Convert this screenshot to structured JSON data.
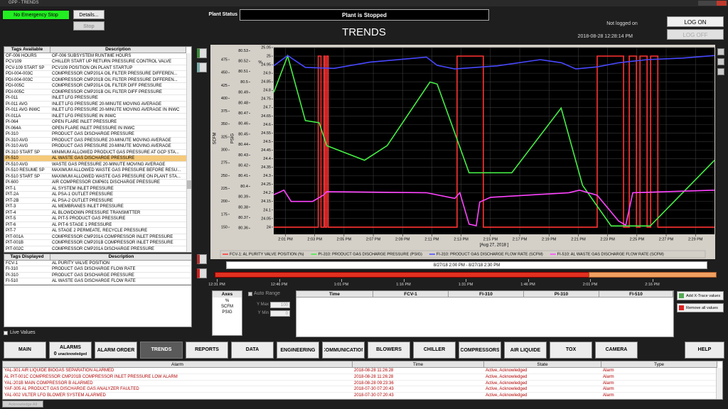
{
  "window_title": "GPP - TRENDS",
  "header": {
    "emergency": "No Emergency Stop",
    "details_button": "Details...",
    "stop_button": "Stop",
    "plant_status_label": "Plant Status",
    "plant_status": "Plant is Stopped",
    "title": "TRENDS",
    "login_status": "Not logged on",
    "log_on": "LOG ON",
    "log_off": "LOG OFF",
    "datetime": "2018-08-28 12:28:14 PM"
  },
  "tags_available": {
    "columns": [
      "Tags Available",
      "Description"
    ],
    "selected": 17,
    "rows": [
      [
        "OF-006 HOURS",
        "OF-006 SUBSYSTEM RUNTIME HOURS"
      ],
      [
        "PCV109",
        "CHILLER START UP RETURN PRESSURE CONTROL VALVE"
      ],
      [
        "PCV-109 START SP",
        "PCV109 POSITION ON PLANT STARTUP"
      ],
      [
        "PDI-004-003C",
        "COMPRESSOR CMP201A OIL FILTER PRESSURE DIFFEREN..."
      ],
      [
        "PDI-004-003C",
        "COMPRESSOR CMP201B OIL FILTER PRESSURE DIFFEREN..."
      ],
      [
        "PDI-005C",
        "COMPRESSOR CMP201A OIL FILTER DIFF PRESSURE"
      ],
      [
        "PDI-005C",
        "COMPRESSOR CMP201B OIL FILTER DIFF PRESSURE"
      ],
      [
        "PI-011",
        "INLET LFG PRESSURE"
      ],
      [
        "PI-011 AVG",
        "INLET LFG PRESSURE 20-MINUTE MOVING AVERAGE"
      ],
      [
        "PI-011 AVG INWC",
        "INLET LFG PRESSURE 20-MINUTE MOVING AVERAGE IN INWC"
      ],
      [
        "PI-011A",
        "INLET LFG PRESSURE IN INWC"
      ],
      [
        "PI-064",
        "OPEN FLARE INLET PRESSURE"
      ],
      [
        "PI-064A",
        "OPEN FLARE INLET PRESSURE IN INWC"
      ],
      [
        "PI-310",
        "PRODUCT GAS DISCHARGE PRESSURE"
      ],
      [
        "PI-310 AVG",
        "PRODUCT GAS PRESSURE 20-MINUTE MOVING AVERAGE"
      ],
      [
        "PI-310 AVG",
        "PRODUCT GAS PRESSURE 20-MINUTE MOVING AVERAGE"
      ],
      [
        "PI-310 START SP",
        "MINIMUM ALLOWED PRODUCT GAS PRESSURE AT GCP STA..."
      ],
      [
        "PI-510",
        "AL WASTE GAS DISCHARGE PRESSURE"
      ],
      [
        "PI-510 AVG",
        "WASTE GAS PRESSURE 20-MINUTE MOVING AVERAGE"
      ],
      [
        "PI-510 RESUME SP",
        "MAXIMUM ALLOWED WASTE GAS PRESSURE BEFORE RESU..."
      ],
      [
        "PI-510 START SP",
        "MAXIMUM ALLOWED WASTE GAS PRESSURE ON PLANT STA..."
      ],
      [
        "PI-600",
        "AIR COMPRESSOR CMP601 DISCHARGE PRESSURE"
      ],
      [
        "PIT-1",
        "AL SYSTEM INLET PRESSURE"
      ],
      [
        "PIT-2A",
        "AL PSA-1 OUTLET PRESSURE"
      ],
      [
        "PIT-2B",
        "AL PSA-2 OUTLET PRESSURE"
      ],
      [
        "PIT-3",
        "AL MEMBRANES INLET PRESSURE"
      ],
      [
        "PIT-4",
        "AL BLOWDOWN PRESSURE TRANSMITTER"
      ],
      [
        "PIT-5",
        "AL PIT-5 PRODUCT GAS PRESSURE"
      ],
      [
        "PIT-6",
        "AL PIT-6 STAGE 1 PRESSURE"
      ],
      [
        "PIT-7",
        "AL  STAGE 2 PERMEATE, RECYCLE PRESSURE"
      ],
      [
        "PIT-001A",
        "COMPRESSOR CMP201A COMPRESSOR INLET PRESSURE"
      ],
      [
        "PIT-001B",
        "COMPRESSOR CMP201B COMPRESSOR INLET PRESSURE"
      ],
      [
        "PIT-002C",
        "COMPRESSOR CMP201A DISCHARGE PRESSURE"
      ]
    ]
  },
  "tags_displayed": {
    "columns": [
      "Tags Displayed",
      "Description"
    ],
    "rows": [
      [
        "FCV-1",
        "AL PURITY VALVE POSITION"
      ],
      [
        "FI-310",
        "PRODUCT GAS DISCHARGE FLOW RATE"
      ],
      [
        "PI-310",
        "PRODUCT GAS DISCHARGE PRESSURE"
      ],
      [
        "FI-510",
        "AL WASTE GAS DISCHARGE FLOW RATE"
      ]
    ]
  },
  "live_values": "Live Values",
  "chart_data": {
    "type": "line",
    "xlabel": "[Aug 27, 2018 ]",
    "xlim": [
      0.2,
      30.3
    ],
    "xticks": [
      {
        "value": 1,
        "label": "2:01 PM"
      },
      {
        "value": 3,
        "label": "2:03 PM"
      },
      {
        "value": 5,
        "label": "2:05 PM"
      },
      {
        "value": 7,
        "label": "2:07 PM"
      },
      {
        "value": 9,
        "label": "2:09 PM"
      },
      {
        "value": 11,
        "label": "2:11 PM"
      },
      {
        "value": 13,
        "label": "2:13 PM"
      },
      {
        "value": 15,
        "label": "2:15 PM"
      },
      {
        "value": 17,
        "label": "2:17 PM"
      },
      {
        "value": 19,
        "label": "2:19 PM"
      },
      {
        "value": 21,
        "label": "2:21 PM"
      },
      {
        "value": 23,
        "label": "2:23 PM"
      },
      {
        "value": 25,
        "label": "2:25 PM"
      },
      {
        "value": 27,
        "label": "2:27 PM"
      },
      {
        "value": 29,
        "label": "2:29 PM"
      }
    ],
    "ylabel": "%",
    "ylim": [
      23.958,
      25.05
    ],
    "yticks": [
      24,
      24.05,
      24.1,
      24.15,
      24.2,
      24.25,
      24.3,
      24.35,
      24.4,
      24.45,
      24.5,
      24.55,
      24.6,
      24.65,
      24.7,
      24.75,
      24.8,
      24.85,
      24.9,
      24.95,
      25,
      25.05
    ],
    "y2label": "PSIG",
    "y2lim": [
      80.354,
      80.533
    ],
    "y2ticks": [
      80.36,
      80.37,
      80.38,
      80.39,
      80.4,
      80.41,
      80.42,
      80.43,
      80.44,
      80.45,
      80.46,
      80.47,
      80.48,
      80.49,
      80.5,
      80.51,
      80.52,
      80.53
    ],
    "y3label": "SCFM",
    "y3lim": [
      136.3,
      498.4
    ],
    "y3ticks": [
      150,
      175,
      200,
      225,
      250,
      275,
      300,
      325,
      350,
      375,
      400,
      425,
      450,
      475
    ],
    "grid": true,
    "series": [
      {
        "name": "FCV-1: AL PURITY VALVE POSITION (%)",
        "color": "#ff3333",
        "axis": "y",
        "x": [
          0.2,
          3.24,
          3.24,
          3.43,
          3.43,
          3.63,
          3.63,
          3.72,
          3.72,
          3.82,
          3.82,
          3.92,
          3.92,
          12.72,
          12.72,
          14.51,
          14.51,
          22.29,
          22.29,
          24.09,
          24.09,
          24.48,
          24.48,
          24.97,
          24.97,
          25.21,
          25.21,
          25.7,
          25.7,
          25.94,
          25.94,
          26.43,
          26.43,
          30.3
        ],
        "values": [
          24,
          24,
          25,
          25,
          24,
          24,
          25,
          25,
          24,
          24,
          25,
          25,
          24,
          24,
          25,
          25,
          24,
          24,
          25,
          25,
          24,
          24,
          25,
          25,
          24,
          24,
          25,
          25,
          24,
          24,
          25,
          25,
          24,
          24
        ]
      },
      {
        "name": "PI-310: PRODUCT GAS DISCHARGE PRESSURE  (PSIG)",
        "color": "#44ee44",
        "axis": "y2",
        "x": [
          0.2,
          1.15,
          2.36,
          3.3,
          3.82,
          6.4,
          7.95,
          10.87,
          11.36,
          13.54,
          16.46,
          19.83,
          21.29,
          23.24,
          25.91,
          30.3
        ],
        "values": [
          80.49,
          80.525,
          80.463,
          80.461,
          80.439,
          80.425,
          80.439,
          80.5,
          80.498,
          80.413,
          80.413,
          80.475,
          80.401,
          80.362,
          80.362,
          80.425
        ]
      },
      {
        "name": "FI-310: PRODUCT GAS DISCHARGE FLOW RATE  (SCFM)",
        "color": "#4848ff",
        "axis": "y3",
        "x": [
          0.2,
          1.15,
          2.36,
          4.31,
          6.74,
          10.63,
          11.36,
          12.57,
          15.49,
          18.4,
          19.86,
          20.83,
          22.29,
          23.75,
          25.7,
          28.13,
          30.3
        ],
        "values": [
          463,
          483,
          460,
          458,
          470,
          480,
          464,
          457,
          463,
          475,
          469,
          457,
          461,
          469,
          475,
          478,
          483
        ]
      },
      {
        "name": "FI-510: AL WASTE GAS DISCHARGE FLOW RATE  (SCFM)",
        "color": "#ff44ff",
        "axis": "y3",
        "x": [
          0.2,
          0.9,
          1.39,
          2.85,
          3.58,
          3.82,
          10.63,
          12.57,
          12.91,
          13.54,
          14.03,
          14.27,
          15.0,
          20.35,
          21.08,
          22.29,
          23.75,
          24.24,
          24.72,
          30.3
        ],
        "values": [
          213,
          222,
          200,
          200,
          212,
          219,
          217,
          206,
          217,
          156,
          153,
          199,
          208,
          217,
          222,
          212,
          162,
          154,
          217,
          222
        ]
      }
    ]
  },
  "navigator": {
    "range": "8/27/18 2:00 PM - 8/27/18 2:30 PM",
    "labels": [
      "12:31 PM",
      "12:46 PM",
      "1:01 PM",
      "1:16 PM",
      "1:31 PM",
      "1:46 PM",
      "2:01 PM",
      "2:16 PM"
    ]
  },
  "axes_panel": {
    "title": "Axes",
    "items": [
      "%",
      "SCFM",
      "PSIG"
    ],
    "auto_range": "Auto Range",
    "y_max_label": "Y Max",
    "y_max": 100,
    "y_min_label": "Y Min",
    "y_min": 0
  },
  "values_table": {
    "columns": [
      "Time",
      "FCV-1",
      "FI-310",
      "PI-310",
      "FI-510"
    ]
  },
  "buttons": {
    "add": "Add X-Trace values",
    "remove": "Remove all values"
  },
  "nav": [
    {
      "label": "MAIN"
    },
    {
      "label": "ALARMS",
      "count": 0,
      "count_label": "unacknowledged"
    },
    {
      "label": "ALARM ORDER"
    },
    {
      "label": "TRENDS",
      "active": true
    },
    {
      "label": "REPORTS"
    },
    {
      "label": "DATA"
    },
    {
      "label": "ENGINEERING"
    },
    {
      "label": "COMMUNICATION"
    },
    {
      "label": "BLOWERS"
    },
    {
      "label": "CHILLER"
    },
    {
      "label": "COMPRESSORS"
    },
    {
      "label": "AIR LIQUIDE"
    },
    {
      "label": "TOX"
    },
    {
      "label": "CAMERA"
    },
    {
      "label": "HELP"
    }
  ],
  "alarms": {
    "columns": [
      "Alarm",
      "Time",
      "State",
      "Type"
    ],
    "rows": [
      [
        "YAL-301 AIR LIQUIDE BIOGAS SEPARATION ALARMED",
        "2018-08-28 11:26:28",
        "Active, Acknowledged",
        "Alarm"
      ],
      [
        "AL PIT-001C COMPRESSOR CMP201B COMPRESSOR INLET PRESSURE LOW ALARM",
        "2018-08-28 11:26:28",
        "Active, Acknowledged",
        "Alarm"
      ],
      [
        "YAL-201B MAIN COMPRESSOR B ALARMED",
        "2018-08-28 09:23:36",
        "Active, Acknowledged",
        "Alarm"
      ],
      [
        "YAF-305 AL PRODUCT GAS DISCHARGE GAS ANALYZER FAULTED",
        "2018-07-30 07:20:43",
        "Active, Acknowledged",
        "Alarm"
      ],
      [
        "YAL-002 VILTER LFO BLOWER SYSTEM ALARMED",
        "2018-07-30 07:20:43",
        "Active, Acknowledged",
        "Alarm"
      ]
    ]
  },
  "acknowledge_all": "Acknowledge All"
}
